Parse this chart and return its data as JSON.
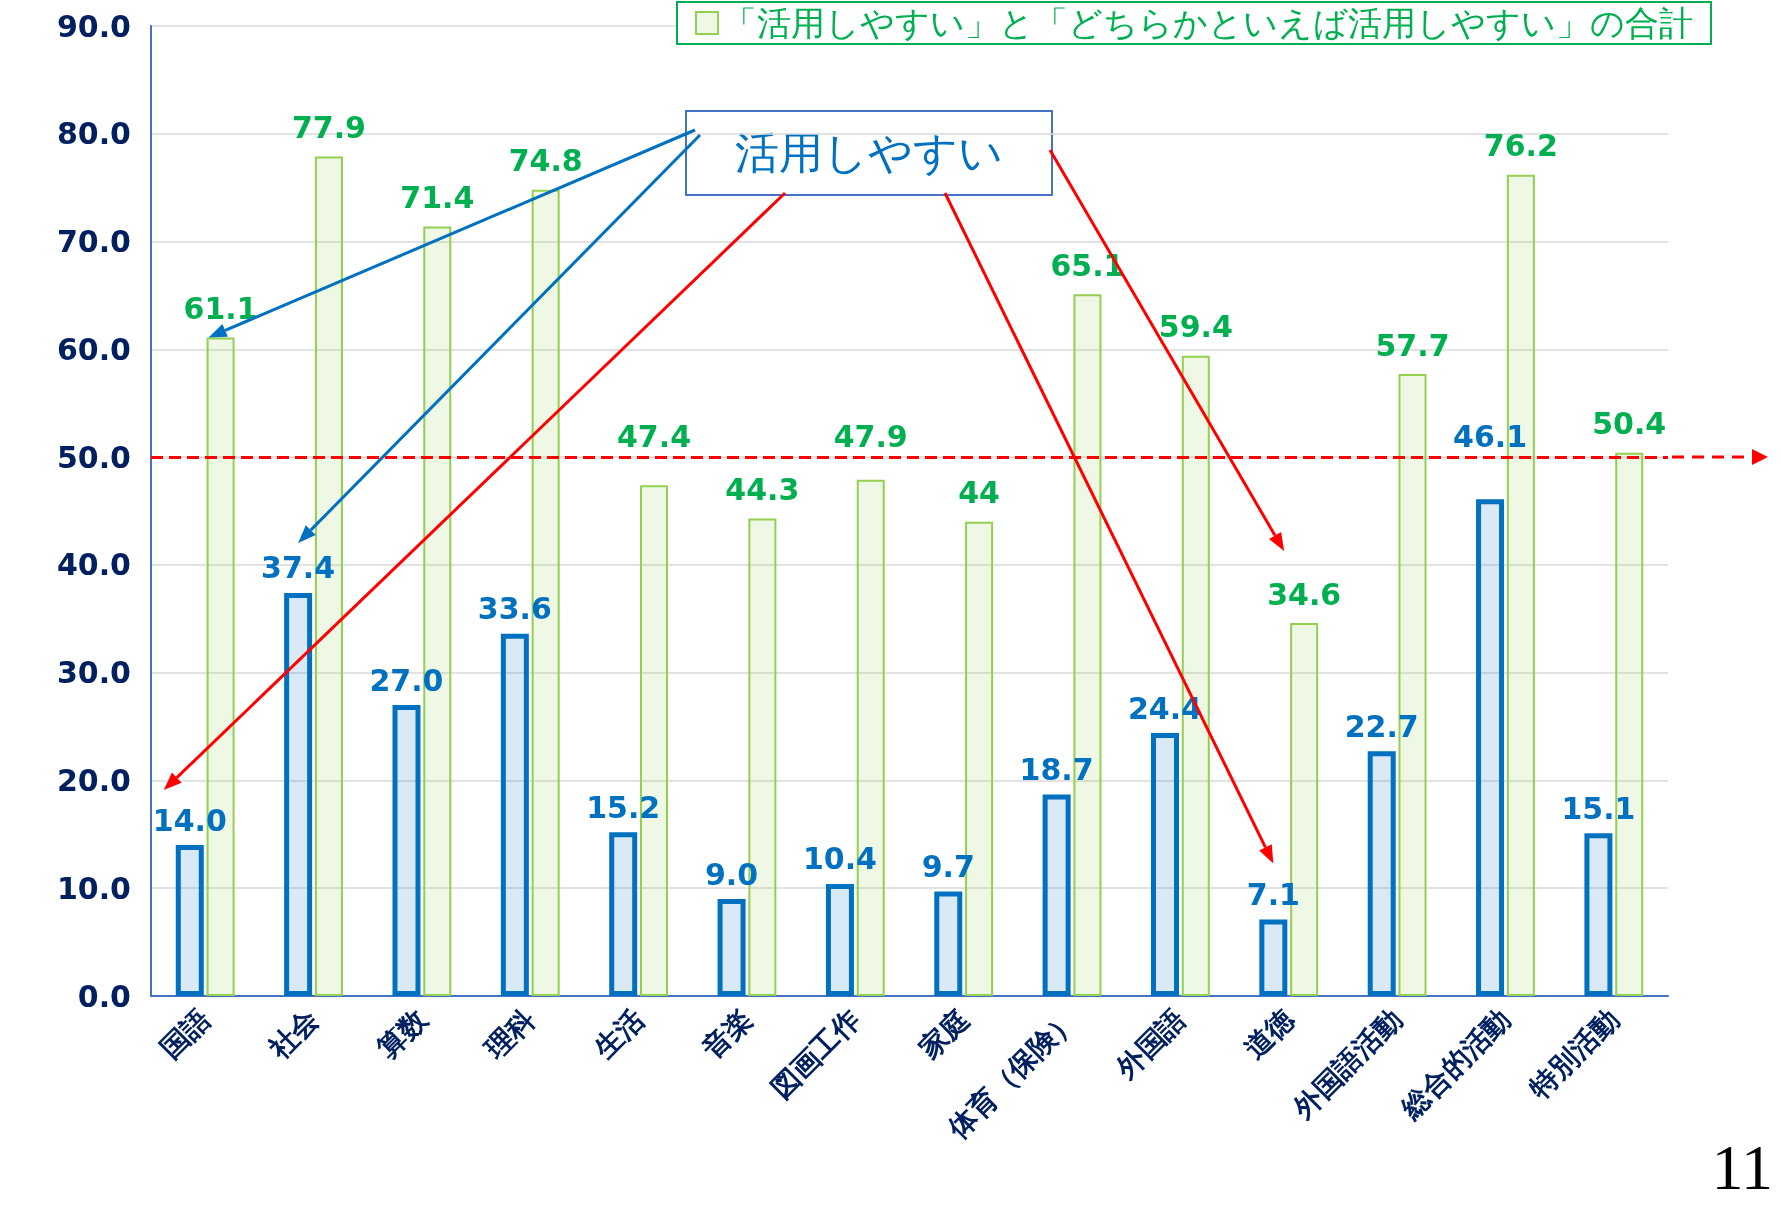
{
  "chart_data": {
    "type": "bar",
    "categories": [
      "国語",
      "社会",
      "算数",
      "理科",
      "生活",
      "音楽",
      "図画工作",
      "家庭",
      "体育（保険）",
      "外国語",
      "道徳",
      "外国語活動",
      "総合的活動",
      "特別活動"
    ],
    "series": [
      {
        "name": "活用しやすい",
        "color": "#0070c0",
        "values": [
          14.0,
          37.4,
          27.0,
          33.6,
          15.2,
          9.0,
          10.4,
          9.7,
          18.7,
          24.4,
          7.1,
          22.7,
          46.1,
          15.1
        ],
        "value_labels": [
          "14.0",
          "37.4",
          "27.0",
          "33.6",
          "15.2",
          "9.0",
          "10.4",
          "9.7",
          "18.7",
          "24.4",
          "7.1",
          "22.7",
          "46.1",
          "15.1"
        ]
      },
      {
        "name": "「活用しやすい」と「どちらかといえば活用しやすい」の合計",
        "color": "#92d050",
        "values": [
          61.1,
          77.9,
          71.4,
          74.8,
          47.4,
          44.3,
          47.9,
          44,
          65.1,
          59.4,
          34.6,
          57.7,
          76.2,
          50.4
        ],
        "value_labels": [
          "61.1",
          "77.9",
          "71.4",
          "74.8",
          "47.4",
          "44.3",
          "47.9",
          "44",
          "65.1",
          "59.4",
          "34.6",
          "57.7",
          "76.2",
          "50.4"
        ]
      }
    ],
    "ylim": [
      0,
      90
    ],
    "yticks": [
      {
        "value": 0,
        "label": "0.0"
      },
      {
        "value": 10,
        "label": "10.0"
      },
      {
        "value": 20,
        "label": "20.0"
      },
      {
        "value": 30,
        "label": "30.0"
      },
      {
        "value": 40,
        "label": "40.0"
      },
      {
        "value": 50,
        "label": "50.0"
      },
      {
        "value": 60,
        "label": "60.0"
      },
      {
        "value": 70,
        "label": "70.0"
      },
      {
        "value": 80,
        "label": "80.0"
      },
      {
        "value": 90,
        "label": "90.0"
      }
    ],
    "grid": "y",
    "legend": "top",
    "ref_lines": [
      {
        "axis": "y",
        "value": 50,
        "color": "#ff0000",
        "line_style": "dashed"
      }
    ],
    "annotations": [
      "11"
    ]
  }
}
